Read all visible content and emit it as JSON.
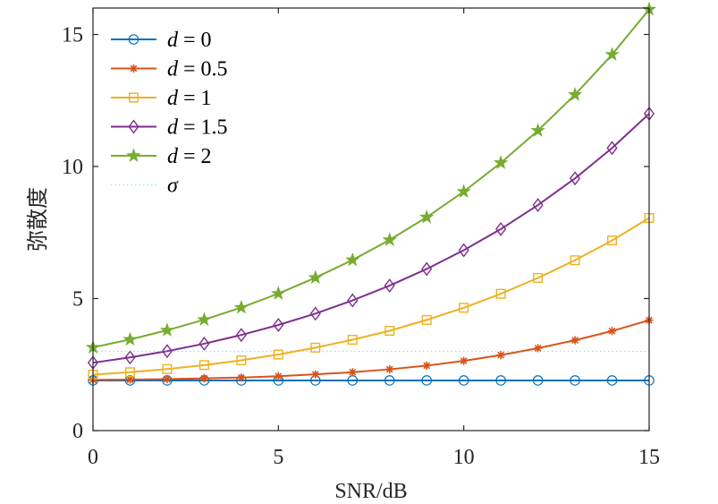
{
  "chart_data": {
    "type": "line",
    "xlabel": "SNR/dB",
    "ylabel": "弥散度",
    "xlim": [
      0,
      15
    ],
    "ylim": [
      0,
      16
    ],
    "xticks": [
      "0",
      "5",
      "10",
      "15"
    ],
    "yticks": [
      "0",
      "5",
      "10",
      "15"
    ],
    "grid": false,
    "legend_position": "top-left",
    "x": [
      0,
      1,
      2,
      3,
      4,
      5,
      6,
      7,
      8,
      9,
      10,
      11,
      12,
      13,
      14,
      15
    ],
    "series": [
      {
        "label_var": "d",
        "label_rest": " = 0",
        "color": "#0072BD",
        "marker": "circle",
        "values": [
          1.9,
          1.9,
          1.9,
          1.9,
          1.9,
          1.9,
          1.9,
          1.9,
          1.9,
          1.9,
          1.9,
          1.9,
          1.9,
          1.9,
          1.9,
          1.9
        ]
      },
      {
        "label_var": "d",
        "label_rest": " = 0.5",
        "color": "#D95319",
        "marker": "asterisk",
        "values": [
          1.92,
          1.93,
          1.95,
          1.98,
          2.01,
          2.06,
          2.13,
          2.21,
          2.32,
          2.46,
          2.64,
          2.86,
          3.12,
          3.42,
          3.77,
          4.18
        ]
      },
      {
        "label_var": "d",
        "label_rest": " = 1",
        "color": "#EDB120",
        "marker": "square",
        "values": [
          2.12,
          2.21,
          2.33,
          2.48,
          2.66,
          2.88,
          3.14,
          3.44,
          3.78,
          4.19,
          4.65,
          5.18,
          5.78,
          6.45,
          7.2,
          8.05
        ]
      },
      {
        "label_var": "d",
        "label_rest": " = 1.5",
        "color": "#7E2F8E",
        "marker": "diamond",
        "values": [
          2.57,
          2.77,
          3.01,
          3.29,
          3.62,
          4.0,
          4.43,
          4.93,
          5.49,
          6.12,
          6.83,
          7.63,
          8.54,
          9.55,
          10.7,
          12.0
        ]
      },
      {
        "label_var": "d",
        "label_rest": " = 2",
        "color": "#77AC30",
        "marker": "star",
        "values": [
          3.15,
          3.45,
          3.8,
          4.2,
          4.66,
          5.19,
          5.79,
          6.46,
          7.22,
          8.08,
          9.05,
          10.14,
          11.36,
          12.72,
          14.24,
          15.95
        ]
      },
      {
        "label_var": "σ",
        "label_rest": "",
        "color": "#4DBEEE",
        "marker": "none",
        "dashed": true,
        "values": [
          3.0,
          3.0,
          3.0,
          3.0,
          3.0,
          3.0,
          3.0,
          3.0,
          3.0,
          3.0,
          3.0,
          3.0,
          3.0,
          3.0,
          3.0,
          3.0
        ]
      }
    ]
  }
}
